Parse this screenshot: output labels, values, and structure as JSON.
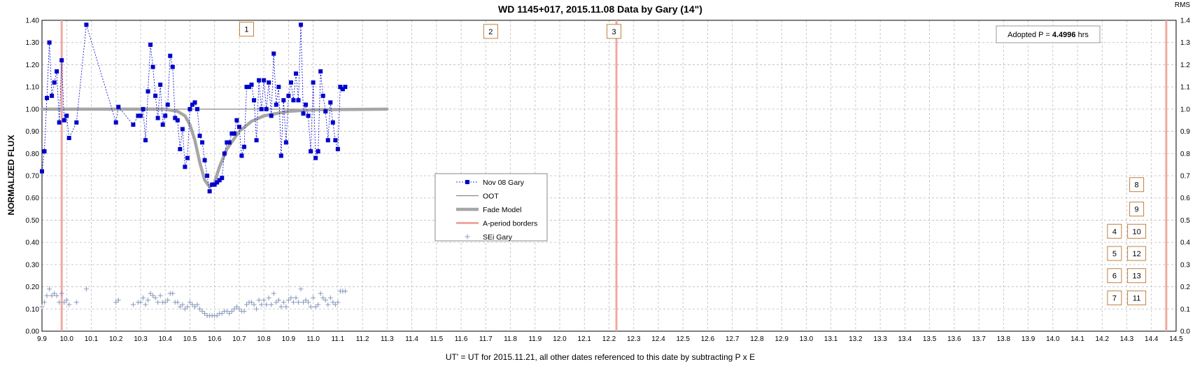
{
  "chart_data": {
    "type": "scatter",
    "title": "WD 1145+017, 2015.11.08 Data by Gary (14\")",
    "xlabel": "UT' = UT for 2015.11.21, all other dates referenced to this date by subtracting P x E",
    "ylabel": "NORMALIZED FLUX",
    "right_axis_label": "RMS",
    "xlim": [
      9.9,
      14.5
    ],
    "ylim": [
      0.0,
      1.4
    ],
    "y2lim": [
      0.0,
      1.4
    ],
    "grid": true,
    "legend_placement": "center",
    "adopted_period": {
      "prefix": "Adopted P = ",
      "value": "4.4996",
      "unit": " hrs"
    },
    "period_borders": [
      9.98,
      12.23,
      14.46
    ],
    "oot_level": 1.0,
    "oot_range": [
      9.9,
      11.3
    ],
    "event_markers": [
      {
        "label": "1",
        "x": 10.73,
        "y": 1.36
      },
      {
        "label": "2",
        "x": 11.72,
        "y": 1.35
      },
      {
        "label": "3",
        "x": 12.22,
        "y": 1.35
      },
      {
        "label": "8",
        "x": 14.34,
        "y": 0.66
      },
      {
        "label": "9",
        "x": 14.34,
        "y": 0.55
      },
      {
        "label": "4",
        "x": 14.25,
        "y": 0.45
      },
      {
        "label": "10",
        "x": 14.34,
        "y": 0.45
      },
      {
        "label": "5",
        "x": 14.25,
        "y": 0.35
      },
      {
        "label": "12",
        "x": 14.34,
        "y": 0.35
      },
      {
        "label": "6",
        "x": 14.25,
        "y": 0.25
      },
      {
        "label": "13",
        "x": 14.34,
        "y": 0.25
      },
      {
        "label": "7",
        "x": 14.25,
        "y": 0.15
      },
      {
        "label": "11",
        "x": 14.34,
        "y": 0.15
      }
    ],
    "colors": {
      "data": "#0000cc",
      "oot": "#888888",
      "fade_model": "#a6a6a6",
      "period_borders": "#f0a8a0",
      "sei": "#8899bb",
      "marker_box": "#c08040",
      "grid": "#bbbbbb"
    },
    "legend": [
      {
        "name": "Nov 08 Gary",
        "key": "data"
      },
      {
        "name": "OOT",
        "key": "oot"
      },
      {
        "name": "Fade Model",
        "key": "fade"
      },
      {
        "name": "A-period borders",
        "key": "borders"
      },
      {
        "name": "SEi Gary",
        "key": "sei"
      }
    ],
    "fade_model": {
      "x": [
        9.9,
        10.2,
        10.4,
        10.45,
        10.48,
        10.5,
        10.52,
        10.54,
        10.56,
        10.58,
        10.6,
        10.62,
        10.65,
        10.7,
        10.75,
        10.8,
        10.9,
        11.0,
        11.3
      ],
      "y": [
        1.0,
        1.0,
        1.0,
        0.99,
        0.97,
        0.93,
        0.86,
        0.76,
        0.68,
        0.65,
        0.67,
        0.74,
        0.82,
        0.9,
        0.945,
        0.97,
        0.99,
        0.997,
        1.0
      ]
    },
    "series": [
      {
        "name": "Nov 08 Gary",
        "x": [
          9.9,
          9.91,
          9.92,
          9.93,
          9.94,
          9.95,
          9.96,
          9.97,
          9.98,
          9.99,
          10.0,
          10.01,
          10.04,
          10.08,
          10.2,
          10.21,
          10.27,
          10.29,
          10.3,
          10.31,
          10.32,
          10.33,
          10.34,
          10.35,
          10.36,
          10.37,
          10.38,
          10.39,
          10.4,
          10.41,
          10.42,
          10.43,
          10.44,
          10.45,
          10.46,
          10.47,
          10.48,
          10.49,
          10.5,
          10.51,
          10.52,
          10.53,
          10.54,
          10.55,
          10.56,
          10.57,
          10.58,
          10.59,
          10.6,
          10.61,
          10.62,
          10.63,
          10.64,
          10.65,
          10.66,
          10.67,
          10.68,
          10.69,
          10.7,
          10.71,
          10.72,
          10.73,
          10.74,
          10.75,
          10.76,
          10.77,
          10.78,
          10.79,
          10.8,
          10.81,
          10.82,
          10.83,
          10.84,
          10.85,
          10.86,
          10.87,
          10.88,
          10.89,
          10.9,
          10.91,
          10.92,
          10.93,
          10.94,
          10.95,
          10.96,
          10.97,
          10.98,
          10.99,
          11.0,
          11.01,
          11.02,
          11.03,
          11.04,
          11.05,
          11.06,
          11.07,
          11.08,
          11.09,
          11.1,
          11.11,
          11.12,
          11.13
        ],
        "y": [
          0.72,
          0.81,
          1.05,
          1.3,
          1.06,
          1.12,
          1.17,
          0.94,
          1.22,
          0.95,
          0.97,
          0.87,
          0.94,
          1.38,
          0.94,
          1.01,
          0.93,
          0.97,
          0.97,
          1.0,
          0.86,
          1.08,
          1.29,
          1.19,
          1.06,
          0.96,
          1.11,
          0.93,
          0.97,
          1.02,
          1.24,
          1.19,
          0.96,
          0.95,
          0.82,
          0.91,
          0.74,
          0.78,
          1.0,
          1.02,
          1.03,
          1.0,
          0.88,
          0.85,
          0.77,
          0.7,
          0.63,
          0.66,
          0.66,
          0.67,
          0.68,
          0.69,
          0.8,
          0.85,
          0.85,
          0.89,
          0.89,
          0.95,
          0.92,
          0.79,
          0.83,
          1.1,
          1.1,
          1.11,
          1.04,
          0.86,
          1.13,
          1.0,
          1.13,
          1.0,
          1.12,
          0.97,
          1.25,
          1.02,
          1.1,
          0.79,
          1.04,
          0.85,
          1.06,
          1.12,
          1.04,
          1.16,
          1.04,
          1.38,
          0.98,
          1.02,
          0.97,
          0.81,
          1.12,
          0.78,
          0.81,
          1.17,
          1.06,
          0.99,
          0.86,
          1.03,
          0.94,
          0.86,
          0.82,
          1.1,
          1.09,
          1.1
        ]
      },
      {
        "name": "SEi Gary",
        "x": [
          9.9,
          9.91,
          9.92,
          9.93,
          9.94,
          9.95,
          9.96,
          9.97,
          9.98,
          9.99,
          10.0,
          10.01,
          10.04,
          10.08,
          10.2,
          10.21,
          10.27,
          10.29,
          10.3,
          10.31,
          10.32,
          10.33,
          10.34,
          10.35,
          10.36,
          10.37,
          10.38,
          10.39,
          10.4,
          10.41,
          10.42,
          10.43,
          10.44,
          10.45,
          10.46,
          10.47,
          10.48,
          10.49,
          10.5,
          10.51,
          10.52,
          10.53,
          10.54,
          10.55,
          10.56,
          10.57,
          10.58,
          10.59,
          10.6,
          10.61,
          10.62,
          10.63,
          10.64,
          10.65,
          10.66,
          10.67,
          10.68,
          10.69,
          10.7,
          10.71,
          10.72,
          10.73,
          10.74,
          10.75,
          10.76,
          10.77,
          10.78,
          10.79,
          10.8,
          10.81,
          10.82,
          10.83,
          10.84,
          10.85,
          10.86,
          10.87,
          10.88,
          10.89,
          10.9,
          10.91,
          10.92,
          10.93,
          10.94,
          10.95,
          10.96,
          10.97,
          10.98,
          10.99,
          11.0,
          11.01,
          11.02,
          11.03,
          11.04,
          11.05,
          11.06,
          11.07,
          11.08,
          11.09,
          11.1,
          11.11,
          11.12,
          11.13
        ],
        "y": [
          0.11,
          0.13,
          0.16,
          0.19,
          0.16,
          0.17,
          0.16,
          0.13,
          0.17,
          0.13,
          0.14,
          0.12,
          0.13,
          0.19,
          0.13,
          0.14,
          0.12,
          0.13,
          0.13,
          0.15,
          0.12,
          0.14,
          0.17,
          0.16,
          0.15,
          0.13,
          0.16,
          0.13,
          0.13,
          0.14,
          0.17,
          0.17,
          0.13,
          0.13,
          0.11,
          0.12,
          0.1,
          0.11,
          0.13,
          0.12,
          0.11,
          0.12,
          0.1,
          0.09,
          0.08,
          0.07,
          0.07,
          0.07,
          0.07,
          0.07,
          0.08,
          0.08,
          0.09,
          0.09,
          0.08,
          0.09,
          0.1,
          0.11,
          0.1,
          0.09,
          0.09,
          0.12,
          0.13,
          0.13,
          0.12,
          0.1,
          0.14,
          0.12,
          0.14,
          0.12,
          0.15,
          0.12,
          0.17,
          0.13,
          0.14,
          0.11,
          0.13,
          0.11,
          0.14,
          0.15,
          0.13,
          0.15,
          0.13,
          0.19,
          0.13,
          0.14,
          0.13,
          0.11,
          0.15,
          0.11,
          0.12,
          0.17,
          0.15,
          0.14,
          0.12,
          0.15,
          0.13,
          0.12,
          0.13,
          0.18,
          0.18,
          0.18
        ]
      }
    ]
  }
}
